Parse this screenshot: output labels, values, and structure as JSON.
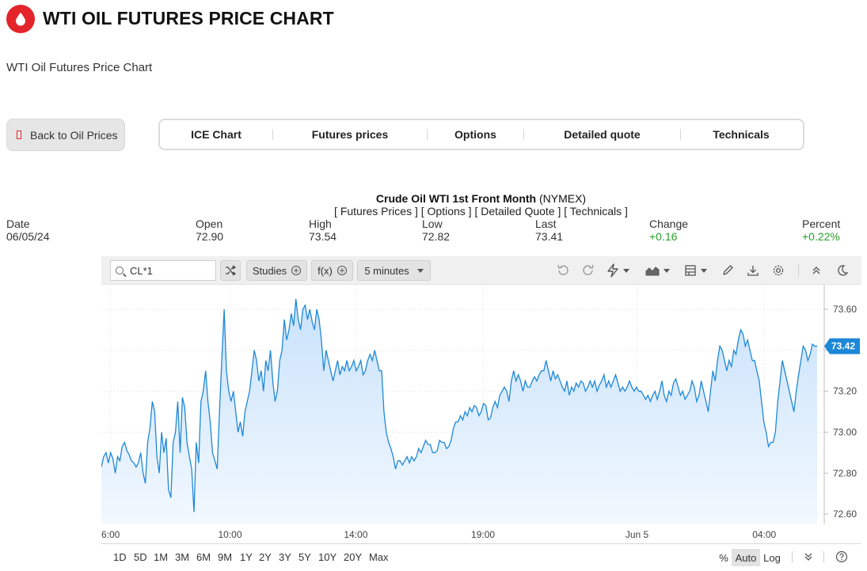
{
  "header": {
    "title": "WTI OIL FUTURES PRICE CHART",
    "subtitle": "WTI Oil Futures Price Chart",
    "logo_icon": "oil-drop-icon",
    "brand_color": "#e4242b"
  },
  "nav": {
    "back_label": "Back to Oil Prices",
    "tabs": [
      "ICE Chart",
      "Futures prices",
      "Options",
      "Detailed quote",
      "Technicals"
    ]
  },
  "quote": {
    "name": "Crude Oil WTI 1st Front Month",
    "exchange": "(NYMEX)",
    "links": "[ Futures Prices ] [ Options ] [ Detailed Quote ] [ Technicals ]",
    "stats": [
      {
        "label": "Date",
        "value": "06/05/24"
      },
      {
        "label": "Open",
        "value": "72.90"
      },
      {
        "label": "High",
        "value": "73.54"
      },
      {
        "label": "Low",
        "value": "72.82"
      },
      {
        "label": "Last",
        "value": "73.41"
      },
      {
        "label": "Change",
        "value": "+0.16"
      },
      {
        "label": "Percent",
        "value": "+0.22%"
      }
    ],
    "positive_color": "#2a9d2a"
  },
  "toolbar": {
    "symbol": "CL*1",
    "studies_label": "Studies",
    "fx_label": "f(x)",
    "interval_label": "5 minutes"
  },
  "ranges": {
    "periods": [
      "1D",
      "5D",
      "1M",
      "3M",
      "6M",
      "9M",
      "1Y",
      "2Y",
      "3Y",
      "5Y",
      "10Y",
      "20Y",
      "Max"
    ],
    "scale_options": [
      "%",
      "Auto",
      "Log"
    ],
    "active_scale": "Auto"
  },
  "chart_data": {
    "type": "area",
    "ylim": [
      72.55,
      73.72
    ],
    "y_ticks": [
      72.6,
      72.8,
      73.0,
      73.2,
      73.4,
      73.6
    ],
    "y_tick_labels": [
      "72.60",
      "72.80",
      "73.00",
      "73.20",
      "73.40",
      "73.60"
    ],
    "x_tick_labels": [
      "6:00",
      "10:00",
      "14:00",
      "19:00",
      "Jun 5",
      "04:00"
    ],
    "last_value": 73.42,
    "last_label": "73.42",
    "grid": true,
    "line_color": "#1e88d8",
    "fill_top": "#c9e2fb",
    "fill_bottom": "#f2f8fe",
    "series": [
      {
        "values": [
          72.83,
          72.88,
          72.9,
          72.85,
          72.9,
          72.87,
          72.8,
          72.88,
          72.86,
          72.93,
          72.95,
          72.91,
          72.89,
          72.86,
          72.85,
          72.83,
          72.85,
          72.9,
          72.8,
          72.75,
          72.95,
          73.02,
          73.15,
          73.1,
          72.88,
          72.8,
          73.0,
          72.9,
          72.97,
          72.72,
          72.68,
          72.95,
          73.0,
          73.15,
          72.9,
          73.17,
          73.12,
          72.95,
          72.88,
          72.82,
          72.61,
          72.95,
          72.85,
          73.15,
          73.2,
          73.3,
          73.15,
          73.05,
          72.9,
          72.86,
          72.82,
          73.1,
          73.35,
          73.6,
          73.3,
          73.2,
          73.15,
          73.2,
          73.1,
          73.0,
          73.05,
          72.98,
          73.1,
          73.15,
          73.2,
          73.3,
          73.4,
          73.35,
          73.25,
          73.3,
          73.2,
          73.35,
          73.3,
          73.4,
          73.25,
          73.15,
          73.2,
          73.35,
          73.4,
          73.55,
          73.45,
          73.5,
          73.58,
          73.52,
          73.65,
          73.55,
          73.5,
          73.6,
          73.62,
          73.55,
          73.6,
          73.54,
          73.5,
          73.6,
          73.55,
          73.45,
          73.3,
          73.4,
          73.35,
          73.3,
          73.25,
          73.3,
          73.35,
          73.28,
          73.32,
          73.3,
          73.35,
          73.3,
          73.32,
          73.35,
          73.3,
          73.32,
          73.35,
          73.28,
          73.3,
          73.35,
          73.38,
          73.35,
          73.4,
          73.35,
          73.3,
          73.3,
          73.1,
          73.0,
          72.95,
          72.92,
          72.88,
          72.82,
          72.86,
          72.86,
          72.84,
          72.86,
          72.88,
          72.85,
          72.88,
          72.86,
          72.88,
          72.92,
          72.9,
          72.93,
          72.96,
          72.94,
          72.94,
          72.9,
          72.9,
          72.91,
          72.96,
          72.95,
          72.95,
          72.92,
          72.93,
          72.96,
          73.02,
          73.05,
          73.05,
          73.08,
          73.06,
          73.1,
          73.08,
          73.12,
          73.1,
          73.13,
          73.12,
          73.08,
          73.1,
          73.14,
          73.13,
          73.06,
          73.07,
          73.12,
          73.15,
          73.12,
          73.18,
          73.2,
          73.22,
          73.2,
          73.15,
          73.25,
          73.3,
          73.25,
          73.28,
          73.25,
          73.2,
          73.25,
          73.22,
          73.22,
          73.25,
          73.27,
          73.25,
          73.28,
          73.3,
          73.3,
          73.35,
          73.3,
          73.25,
          73.3,
          73.26,
          73.28,
          73.25,
          73.22,
          73.2,
          73.25,
          73.18,
          73.22,
          73.2,
          73.24,
          73.22,
          73.25,
          73.24,
          73.2,
          73.22,
          73.25,
          73.22,
          73.25,
          73.2,
          73.23,
          73.25,
          73.28,
          73.22,
          73.25,
          73.22,
          73.25,
          73.28,
          73.24,
          73.2,
          73.22,
          73.2,
          73.22,
          73.25,
          73.22,
          73.2,
          73.22,
          73.2,
          73.2,
          73.18,
          73.16,
          73.18,
          73.15,
          73.18,
          73.2,
          73.16,
          73.2,
          73.25,
          73.18,
          73.15,
          73.2,
          73.18,
          73.24,
          73.26,
          73.22,
          73.18,
          73.2,
          73.16,
          73.18,
          73.2,
          73.25,
          73.22,
          73.15,
          73.18,
          73.25,
          73.2,
          73.15,
          73.1,
          73.2,
          73.3,
          73.25,
          73.35,
          73.42,
          73.4,
          73.35,
          73.3,
          73.35,
          73.32,
          73.4,
          73.38,
          73.45,
          73.5,
          73.48,
          73.42,
          73.45,
          73.4,
          73.35,
          73.35,
          73.3,
          73.25,
          73.15,
          73.05,
          73.0,
          72.93,
          72.95,
          72.95,
          73.0,
          73.15,
          73.25,
          73.35,
          73.3,
          73.25,
          73.2,
          73.15,
          73.1,
          73.2,
          73.28,
          73.35,
          73.42,
          73.4,
          73.35,
          73.38,
          73.43,
          73.42,
          73.42
        ]
      }
    ]
  }
}
